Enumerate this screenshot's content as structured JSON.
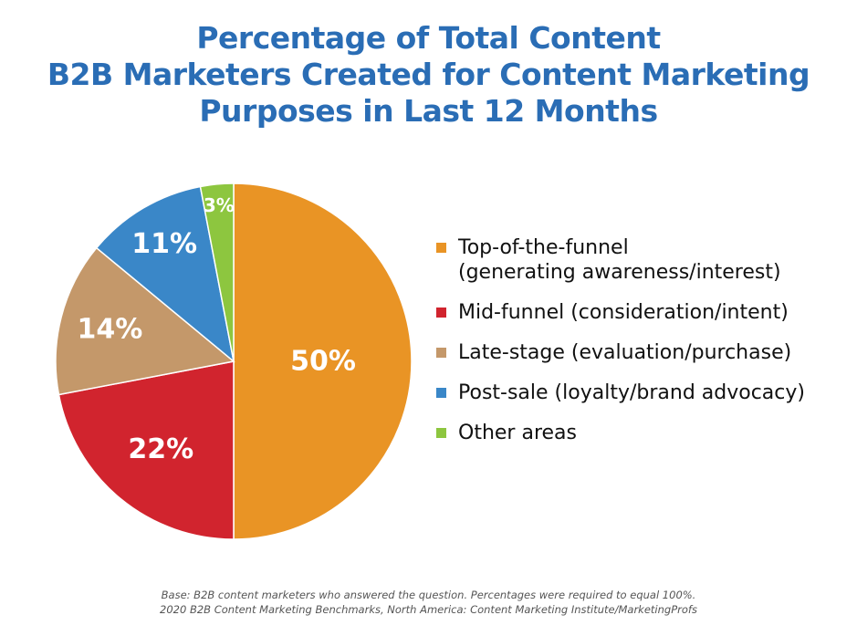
{
  "chart_data": {
    "type": "pie",
    "title": [
      "Percentage of Total Content",
      "B2B Marketers Created for Content Marketing",
      "Purposes in Last 12 Months"
    ],
    "start": "top",
    "direction": "clockwise",
    "legend_position": "right",
    "slices": [
      {
        "name": "Top-of-the-funnel",
        "name_line2": "(generating awareness/interest)",
        "value": 50,
        "label": "50%",
        "color": "#E99425"
      },
      {
        "name": "Mid-funnel (consideration/intent)",
        "value": 22,
        "label": "22%",
        "color": "#D1242E"
      },
      {
        "name": "Late-stage (evaluation/purchase)",
        "value": 14,
        "label": "14%",
        "color": "#C4986A"
      },
      {
        "name": "Post-sale (loyalty/brand advocacy)",
        "value": 11,
        "label": "11%",
        "color": "#3A87C8"
      },
      {
        "name": "Other areas",
        "value": 3,
        "label": "3%",
        "color": "#8DC63F"
      }
    ],
    "notes": [
      "Base: B2B content marketers who answered the question. Percentages were required to equal 100%.",
      "2020 B2B Content Marketing Benchmarks, North America: Content Marketing Institute/MarketingProfs"
    ]
  }
}
